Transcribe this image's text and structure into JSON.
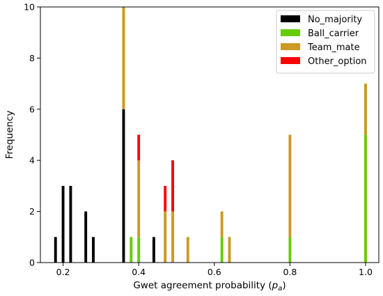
{
  "chart_data": {
    "type": "bar",
    "stacked": true,
    "xlabel": "Gwet agreement probability (",
    "xlabel_symbol": "p",
    "xlabel_subscript": "a",
    "xlabel_close": ")",
    "ylabel": "Frequency",
    "xlim": [
      0.14,
      1.035
    ],
    "ylim": [
      0,
      10
    ],
    "xticks": [
      0.2,
      0.4,
      0.6,
      0.8,
      1.0
    ],
    "xtick_labels": [
      "0.2",
      "0.4",
      "0.6",
      "0.8",
      "1.0"
    ],
    "yticks": [
      0,
      2,
      4,
      6,
      8,
      10
    ],
    "ytick_labels": [
      "0",
      "2",
      "4",
      "6",
      "8",
      "10"
    ],
    "bin_width": 0.01,
    "legend_position": "top-right",
    "series": [
      {
        "name": "No_majority",
        "color": "#000000",
        "points": [
          {
            "x": 0.18,
            "y": 1
          },
          {
            "x": 0.2,
            "y": 3
          },
          {
            "x": 0.22,
            "y": 3
          },
          {
            "x": 0.26,
            "y": 2
          },
          {
            "x": 0.28,
            "y": 1
          },
          {
            "x": 0.36,
            "y": 6
          },
          {
            "x": 0.44,
            "y": 1
          }
        ]
      },
      {
        "name": "Ball_carrier",
        "color": "#66cc00",
        "points": [
          {
            "x": 0.38,
            "y": 1
          },
          {
            "x": 0.4,
            "y": 1
          },
          {
            "x": 0.62,
            "y": 1
          },
          {
            "x": 0.8,
            "y": 1
          },
          {
            "x": 1.0,
            "y": 5
          }
        ]
      },
      {
        "name": "Team_mate",
        "color": "#cc9922",
        "points": [
          {
            "x": 0.36,
            "y": 4
          },
          {
            "x": 0.4,
            "y": 3
          },
          {
            "x": 0.47,
            "y": 2
          },
          {
            "x": 0.49,
            "y": 2
          },
          {
            "x": 0.53,
            "y": 1
          },
          {
            "x": 0.62,
            "y": 1
          },
          {
            "x": 0.64,
            "y": 1
          },
          {
            "x": 0.8,
            "y": 4
          },
          {
            "x": 1.0,
            "y": 2
          }
        ]
      },
      {
        "name": "Other_option",
        "color": "#ff0000",
        "points": [
          {
            "x": 0.4,
            "y": 1
          },
          {
            "x": 0.47,
            "y": 1
          },
          {
            "x": 0.49,
            "y": 2
          }
        ]
      }
    ]
  }
}
